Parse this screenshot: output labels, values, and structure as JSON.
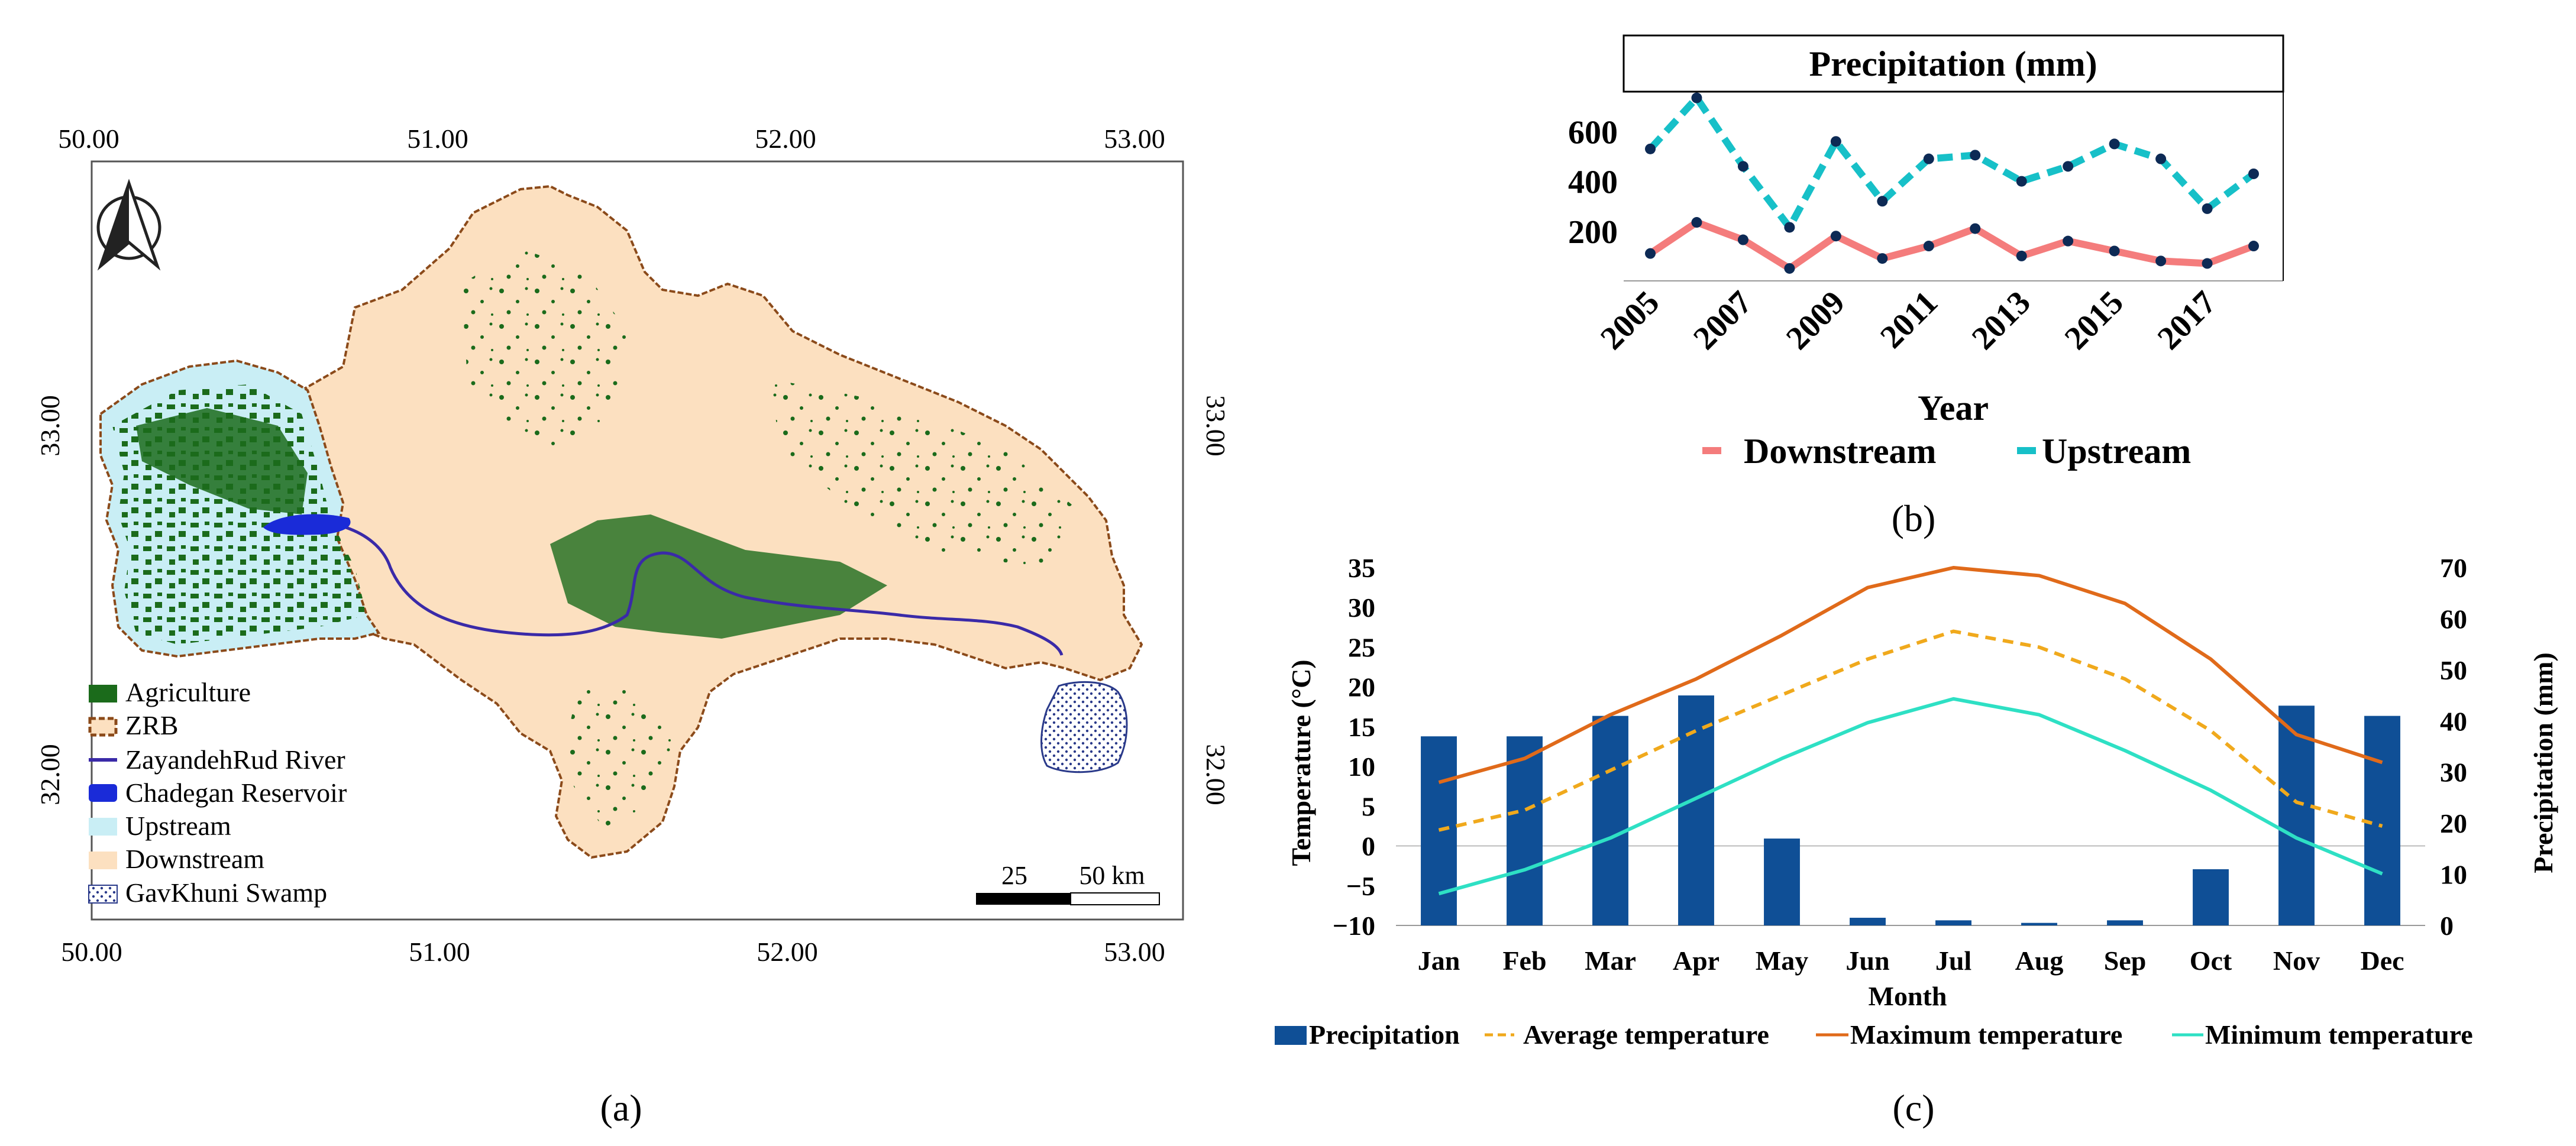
{
  "map": {
    "top_ticks": [
      "50.00",
      "51.00",
      "52.00",
      "53.00"
    ],
    "bottom_ticks": [
      "50.00",
      "51.00",
      "52.00",
      "53.00"
    ],
    "left_ticks": [
      "33.00",
      "32.00"
    ],
    "right_ticks": [
      "33.00",
      "32.00"
    ],
    "legend": [
      {
        "label": "Agriculture",
        "symbol": "fill-green"
      },
      {
        "label": "ZRB",
        "symbol": "dashed-outline"
      },
      {
        "label": "ZayandehRud River",
        "symbol": "line"
      },
      {
        "label": "Chadegan Reservoir",
        "symbol": "fill-blue"
      },
      {
        "label": "Upstream",
        "symbol": "fill-lightblue"
      },
      {
        "label": "Downstream",
        "symbol": "fill-peach"
      },
      {
        "label": "GavKhuni Swamp",
        "symbol": "dotted-fill"
      }
    ],
    "scale_labels": [
      "25",
      "50 km"
    ],
    "north_arrow": "north-arrow-icon",
    "colors": {
      "agriculture": "#1b6b1b",
      "upstream": "#c9eef5",
      "downstream": "#fce0c0",
      "border": "#8b4a1a",
      "river": "#3a2aa8",
      "reservoir": "#1a2bd8"
    },
    "caption": "(a)"
  },
  "chart_data": [
    {
      "type": "line",
      "title": "Precipitation (mm)",
      "xlabel": "Year",
      "ylabel": "",
      "x": [
        2005,
        2006,
        2007,
        2008,
        2009,
        2010,
        2011,
        2012,
        2013,
        2014,
        2015,
        2016,
        2017,
        2018
      ],
      "xtick_labels": [
        "2005",
        "2007",
        "2009",
        "2011",
        "2013",
        "2015",
        "2017"
      ],
      "yticks": [
        "200",
        "400",
        "600"
      ],
      "ylim": [
        0,
        760
      ],
      "series": [
        {
          "name": "Downstream",
          "color": "#f47c7c",
          "style": "solid",
          "values": [
            110,
            235,
            165,
            50,
            180,
            90,
            140,
            210,
            100,
            160,
            120,
            80,
            70,
            140
          ]
        },
        {
          "name": "Upstream",
          "color": "#17c0c8",
          "style": "dashed",
          "values": [
            530,
            735,
            460,
            215,
            560,
            320,
            490,
            505,
            400,
            460,
            550,
            490,
            290,
            430
          ]
        }
      ],
      "legend_position": "bottom",
      "caption": "(b)"
    },
    {
      "type": "bar",
      "title": "",
      "xlabel": "Month",
      "ylabel": "Temperature (°C)",
      "y2label": "Precipitation (mm)",
      "categories": [
        "Jan",
        "Feb",
        "Mar",
        "Apr",
        "May",
        "Jun",
        "Jul",
        "Aug",
        "Sep",
        "Oct",
        "Nov",
        "Dec"
      ],
      "ylim": [
        -10,
        35
      ],
      "yticks": [
        "35",
        "30",
        "25",
        "20",
        "15",
        "10",
        "5",
        "0",
        "−5",
        "−10"
      ],
      "y2lim": [
        0,
        70
      ],
      "y2ticks": [
        "70",
        "60",
        "50",
        "40",
        "30",
        "20",
        "10",
        "0"
      ],
      "series": [
        {
          "name": "Precipitation",
          "kind": "bar",
          "axis": "right",
          "color": "#0f4f96",
          "values": [
            37,
            37,
            41,
            45,
            17,
            1.5,
            1,
            0.5,
            1,
            11,
            43,
            41
          ]
        },
        {
          "name": "Average temperature",
          "kind": "line",
          "axis": "left",
          "style": "dashed",
          "color": "#f0a91c",
          "values": [
            2,
            4.5,
            9.5,
            14.5,
            19,
            23.5,
            27,
            25,
            21,
            14.5,
            5.5,
            2.5
          ]
        },
        {
          "name": "Maximum temperature",
          "kind": "line",
          "axis": "left",
          "style": "solid",
          "color": "#e06a1a",
          "values": [
            8,
            11,
            16.5,
            21,
            26.5,
            32.5,
            35,
            34,
            30.5,
            23.5,
            14,
            10.5
          ]
        },
        {
          "name": "Minimum temperature",
          "kind": "line",
          "axis": "left",
          "style": "solid",
          "color": "#2ee0c4",
          "values": [
            -6,
            -3,
            1,
            6,
            11,
            15.5,
            18.5,
            16.5,
            12,
            7,
            1,
            -3.5
          ]
        }
      ],
      "legend_position": "bottom",
      "caption": "(c)"
    }
  ]
}
